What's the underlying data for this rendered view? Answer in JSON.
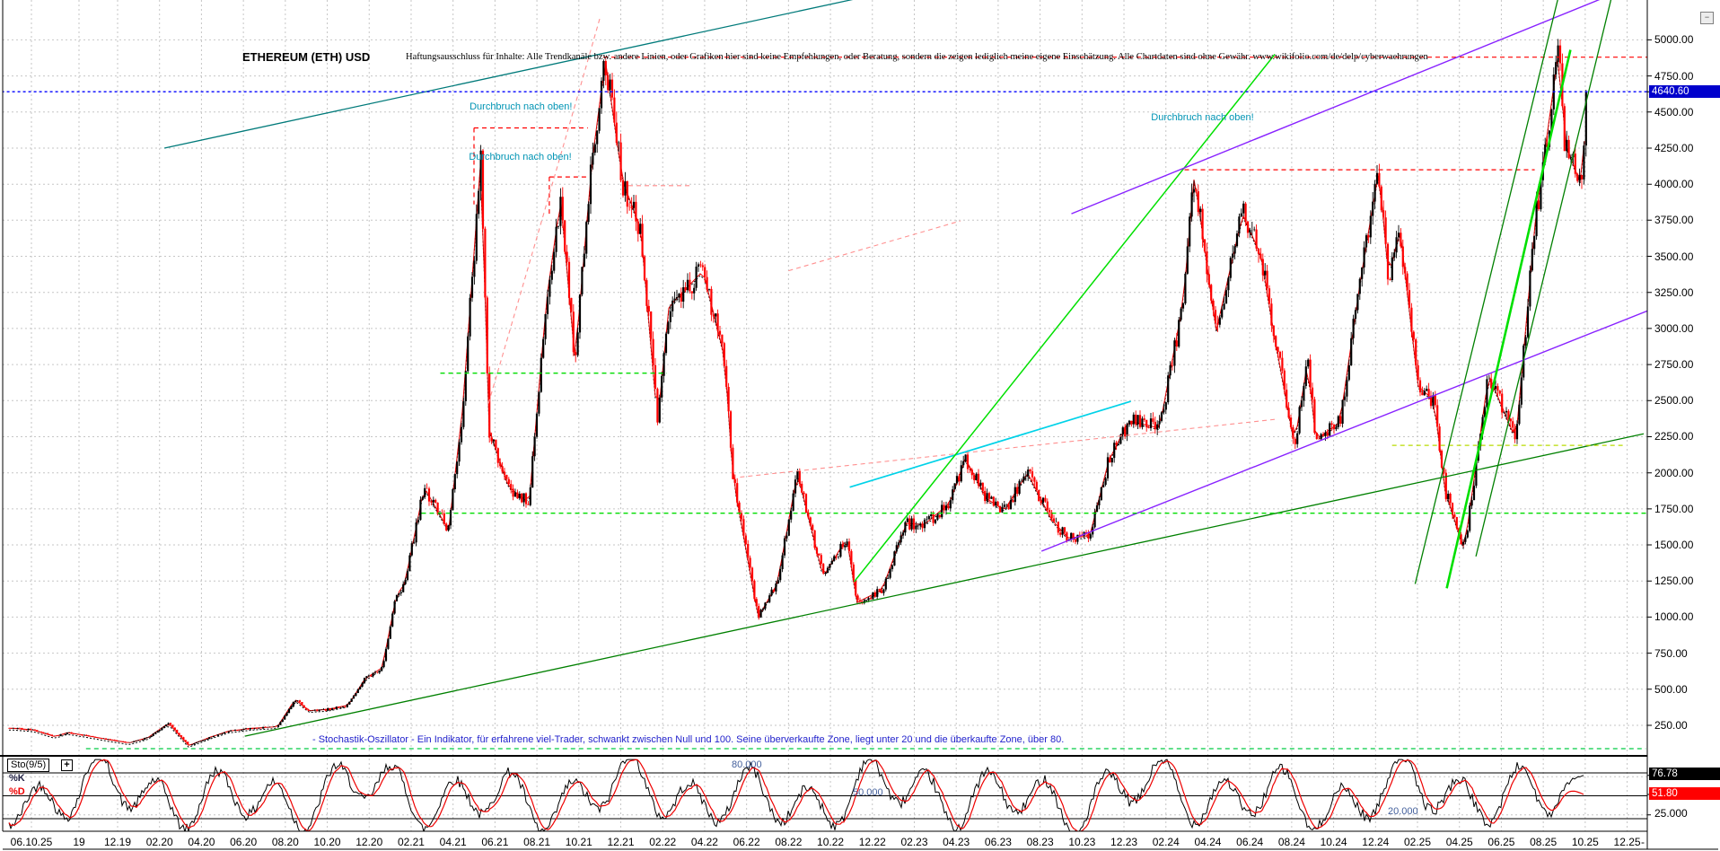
{
  "window": {
    "minimize_icon": "−"
  },
  "header": {
    "title": "ETHEREUM (ETH) USD",
    "disclaimer": "Haftungsausschluss für Inhalte: Alle Trendkanäle bzw. andere Linien, oder Grafiken hier sind keine Empfehlungen, oder Beratung, sondern die zeigen lediglich meine eigene Einschätzung. Alle Chartdaten sind ohne Gewähr.  www.wikifolio.com/de/delp/cyberwaehrungen"
  },
  "price_axis": {
    "ticks": [
      "5000.00",
      "4750.00",
      "4500.00",
      "4250.00",
      "4000.00",
      "3750.00",
      "3500.00",
      "3250.00",
      "3000.00",
      "2750.00",
      "2500.00",
      "2250.00",
      "2000.00",
      "1750.00",
      "1500.00",
      "1250.00",
      "1000.00",
      "750.00",
      "500.00",
      "250.00"
    ],
    "current_label": "4640.60",
    "current_value": 4640.6,
    "current_bg": "#0000cc",
    "axis_range": [
      250,
      5000
    ]
  },
  "date_axis": {
    "leading": [
      "06.10.25",
      "19"
    ],
    "labels": [
      "12.19",
      "02.20",
      "04.20",
      "06.20",
      "08.20",
      "10.20",
      "12.20",
      "02.21",
      "04.21",
      "06.21",
      "08.21",
      "10.21",
      "12.21",
      "02.22",
      "04.22",
      "06.22",
      "08.22",
      "10.22",
      "12.22",
      "02.23",
      "04.23",
      "06.23",
      "08.23",
      "10.23",
      "12.23",
      "02.24",
      "04.24",
      "06.24",
      "08.24",
      "10.24",
      "12.24",
      "02.25",
      "04.25",
      "06.25",
      "08.25",
      "10.25",
      "12.25"
    ],
    "trailing": "-"
  },
  "stochastic": {
    "indicator_label": "Sto(9/5)",
    "expand_icon": "+",
    "k_label": "%K",
    "d_label": "%D",
    "k_value": "76.78",
    "d_value": "51.80",
    "axis_tick": "25.000",
    "level_labels": [
      "80.000",
      "50.000",
      "20.000"
    ],
    "levels": [
      80,
      50,
      20
    ],
    "k_color": "#000000",
    "d_color": "#ee0000",
    "description": "- Stochastik-Oszillator - Ein Indikator, für erfahrene viel-Trader, schwankt zwischen Null und 100. Seine überverkaufte Zone, liegt unter 20 und die überkaufte Zone, über 80."
  },
  "colors": {
    "candle_up": "#000000",
    "candle_down": "#ff0000",
    "grid": "#c6c6c6",
    "current_line": "#0000ff",
    "annotation_text": "#0094b4"
  },
  "chart_data": {
    "type": "candlestick",
    "symbol": "ETHEREUM (ETH) USD",
    "currency": "USD",
    "current_price": 4640.6,
    "ylim": [
      250,
      5000
    ],
    "grid": true,
    "series": [
      [
        "2019-07-01",
        230
      ],
      [
        "2019-08-01",
        218
      ],
      [
        "2019-09-01",
        172
      ],
      [
        "2019-09-20",
        200
      ],
      [
        "2019-10-15",
        180
      ],
      [
        "2019-11-20",
        150
      ],
      [
        "2019-12-18",
        128
      ],
      [
        "2020-01-15",
        166
      ],
      [
        "2020-02-14",
        265
      ],
      [
        "2020-03-13",
        110
      ],
      [
        "2020-04-15",
        170
      ],
      [
        "2020-05-10",
        210
      ],
      [
        "2020-06-15",
        230
      ],
      [
        "2020-07-20",
        240
      ],
      [
        "2020-08-15",
        430
      ],
      [
        "2020-09-05",
        352
      ],
      [
        "2020-10-01",
        360
      ],
      [
        "2020-11-01",
        390
      ],
      [
        "2020-11-25",
        570
      ],
      [
        "2020-12-20",
        650
      ],
      [
        "2021-01-10",
        1150
      ],
      [
        "2021-01-22",
        1230
      ],
      [
        "2021-02-20",
        1900
      ],
      [
        "2021-03-25",
        1600
      ],
      [
        "2021-04-15",
        2450
      ],
      [
        "2021-05-11",
        4180
      ],
      [
        "2021-05-23",
        2300
      ],
      [
        "2021-06-21",
        1900
      ],
      [
        "2021-07-20",
        1790
      ],
      [
        "2021-08-15",
        3200
      ],
      [
        "2021-09-05",
        3900
      ],
      [
        "2021-09-26",
        2780
      ],
      [
        "2021-10-20",
        4150
      ],
      [
        "2021-11-09",
        4860
      ],
      [
        "2021-12-04",
        4020
      ],
      [
        "2021-12-30",
        3690
      ],
      [
        "2022-01-24",
        2350
      ],
      [
        "2022-02-10",
        3150
      ],
      [
        "2022-03-29",
        3400
      ],
      [
        "2022-04-30",
        2800
      ],
      [
        "2022-05-12",
        1960
      ],
      [
        "2022-06-18",
        1000
      ],
      [
        "2022-07-15",
        1230
      ],
      [
        "2022-08-14",
        2000
      ],
      [
        "2022-09-21",
        1280
      ],
      [
        "2022-10-25",
        1550
      ],
      [
        "2022-11-09",
        1100
      ],
      [
        "2022-12-15",
        1190
      ],
      [
        "2023-01-20",
        1650
      ],
      [
        "2023-02-15",
        1640
      ],
      [
        "2023-03-22",
        1790
      ],
      [
        "2023-04-14",
        2100
      ],
      [
        "2023-05-15",
        1820
      ],
      [
        "2023-06-10",
        1740
      ],
      [
        "2023-07-13",
        2000
      ],
      [
        "2023-08-17",
        1680
      ],
      [
        "2023-09-11",
        1550
      ],
      [
        "2023-10-12",
        1560
      ],
      [
        "2023-11-09",
        2080
      ],
      [
        "2023-12-08",
        2360
      ],
      [
        "2024-01-22",
        2310
      ],
      [
        "2024-02-26",
        3180
      ],
      [
        "2024-03-12",
        4070
      ],
      [
        "2024-04-13",
        2980
      ],
      [
        "2024-05-21",
        3790
      ],
      [
        "2024-06-17",
        3510
      ],
      [
        "2024-07-07",
        2930
      ],
      [
        "2024-08-05",
        2200
      ],
      [
        "2024-08-24",
        2770
      ],
      [
        "2024-09-06",
        2230
      ],
      [
        "2024-10-10",
        2350
      ],
      [
        "2024-11-11",
        3380
      ],
      [
        "2024-12-06",
        4100
      ],
      [
        "2024-12-20",
        3350
      ],
      [
        "2025-01-06",
        3690
      ],
      [
        "2025-02-02",
        2600
      ],
      [
        "2025-02-25",
        2500
      ],
      [
        "2025-03-11",
        1870
      ],
      [
        "2025-04-08",
        1470
      ],
      [
        "2025-05-13",
        2680
      ],
      [
        "2025-06-22",
        2230
      ],
      [
        "2025-07-20",
        3750
      ],
      [
        "2025-08-24",
        4950
      ],
      [
        "2025-09-01",
        4300
      ],
      [
        "2025-09-25",
        4000
      ],
      [
        "2025-10-06",
        4640.6
      ]
    ],
    "trendlines": [
      {
        "name": "teal-longterm-line",
        "color": "#007a7a",
        "style": "solid",
        "width": 1.3,
        "pts": [
          [
            "2020-02-08",
            4250
          ],
          [
            "2022-11-03",
            5280
          ]
        ]
      },
      {
        "name": "ath-resistance-4880",
        "color": "#ff0000",
        "style": "dashed",
        "width": 1.2,
        "pts": [
          [
            "2021-11-06",
            4880
          ],
          [
            "2025-12-30",
            4880
          ]
        ]
      },
      {
        "name": "breakout-level-may-2021",
        "color": "#ff0000",
        "style": "dashed",
        "width": 1.2,
        "pts": [
          [
            "2021-05-01",
            4390
          ],
          [
            "2021-10-14",
            4390
          ]
        ]
      },
      {
        "name": "breakout-drop-may-2021",
        "color": "#ff0000",
        "style": "dashed",
        "width": 1.2,
        "pts": [
          [
            "2021-05-01",
            4390
          ],
          [
            "2021-05-01",
            3860
          ]
        ]
      },
      {
        "name": "breakout-level-oct-2021",
        "color": "#ff0000",
        "style": "dashed",
        "width": 1.2,
        "pts": [
          [
            "2021-08-19",
            4050
          ],
          [
            "2021-10-14",
            4050
          ]
        ]
      },
      {
        "name": "breakout-drop-oct-2021",
        "color": "#ff0000",
        "style": "dashed",
        "width": 1.2,
        "pts": [
          [
            "2021-08-19",
            4050
          ],
          [
            "2021-08-19",
            3780
          ]
        ]
      },
      {
        "name": "resistance-3990-dec-2021",
        "color": "#ff8888",
        "style": "dashed",
        "width": 1.1,
        "pts": [
          [
            "2021-12-12",
            3990
          ],
          [
            "2022-03-10",
            3990
          ]
        ]
      },
      {
        "name": "breakout-level-mar-2024",
        "color": "#ff0000",
        "style": "dashed",
        "width": 1.2,
        "pts": [
          [
            "2024-02-28",
            4100
          ],
          [
            "2025-07-19",
            4100
          ]
        ]
      },
      {
        "name": "parabolic-support-2021",
        "color": "#ff9090",
        "style": "dashed",
        "width": 1.1,
        "curve": [
          [
            "2021-05-22",
            2480
          ],
          [
            "2021-08-16",
            3880
          ],
          [
            "2021-11-01",
            5150
          ]
        ]
      },
      {
        "name": "pink-resistance-2022-2024",
        "color": "#ff9090",
        "style": "dashed",
        "width": 1.1,
        "pts": [
          [
            "2022-05-22",
            1970
          ],
          [
            "2024-07-07",
            2370
          ]
        ]
      },
      {
        "name": "pink-projection-2023",
        "color": "#ff9090",
        "style": "dashed",
        "width": 1.1,
        "pts": [
          [
            "2022-08-01",
            3400
          ],
          [
            "2023-04-07",
            3745
          ]
        ]
      },
      {
        "name": "cyan-trendline-2023",
        "color": "#00d2e8",
        "style": "solid",
        "width": 1.7,
        "pts": [
          [
            "2022-10-29",
            1900
          ],
          [
            "2023-12-11",
            2495
          ]
        ]
      },
      {
        "name": "lime-uptrend-2022-2024",
        "color": "#00e000",
        "style": "solid",
        "width": 1.5,
        "pts": [
          [
            "2022-11-05",
            1245
          ],
          [
            "2024-07-07",
            4900
          ]
        ]
      },
      {
        "name": "green-longterm-support",
        "color": "#008000",
        "style": "solid",
        "width": 1.3,
        "pts": [
          [
            "2020-06-03",
            175
          ],
          [
            "2025-12-25",
            2270
          ]
        ]
      },
      {
        "name": "purple-upper-trendline",
        "color": "#8822ff",
        "style": "solid",
        "width": 1.4,
        "pts": [
          [
            "2023-09-16",
            3795
          ],
          [
            "2025-10-22",
            5280
          ]
        ]
      },
      {
        "name": "purple-lower-trendline",
        "color": "#8822ff",
        "style": "solid",
        "width": 1.4,
        "pts": [
          [
            "2023-08-03",
            1457
          ],
          [
            "2025-12-31",
            3123
          ]
        ]
      },
      {
        "name": "support-1720",
        "color": "#00dd00",
        "style": "dashed",
        "width": 1.3,
        "pts": [
          [
            "2021-02-16",
            1720
          ],
          [
            "2025-12-31",
            1720
          ]
        ]
      },
      {
        "name": "support-2690",
        "color": "#00dd00",
        "style": "dashed",
        "width": 1.3,
        "pts": [
          [
            "2021-03-13",
            2690
          ],
          [
            "2022-02-07",
            2690
          ]
        ]
      },
      {
        "name": "support-90-longterm",
        "color": "#00cc44",
        "style": "dashed",
        "width": 1.2,
        "pts": [
          [
            "2019-10-16",
            88
          ],
          [
            "2025-12-28",
            88
          ]
        ]
      },
      {
        "name": "level-2190-dashed",
        "color": "#b8dc00",
        "style": "dashed",
        "width": 1.2,
        "pts": [
          [
            "2024-12-25",
            2190
          ],
          [
            "2025-11-25",
            2190
          ]
        ]
      },
      {
        "name": "steep-channel-left-2025",
        "color": "#008000",
        "style": "solid",
        "width": 1.3,
        "pts": [
          [
            "2025-01-28",
            1230
          ],
          [
            "2025-08-22",
            5280
          ]
        ]
      },
      {
        "name": "steep-channel-right-2025",
        "color": "#008000",
        "style": "solid",
        "width": 1.3,
        "pts": [
          [
            "2025-04-25",
            1420
          ],
          [
            "2025-11-08",
            5280
          ]
        ]
      },
      {
        "name": "lime-steep-2025",
        "color": "#00e000",
        "style": "solid",
        "width": 2.6,
        "pts": [
          [
            "2025-03-13",
            1200
          ],
          [
            "2025-09-10",
            4930
          ]
        ]
      },
      {
        "name": "current-price-line",
        "color": "#0000ff",
        "style": "dotted",
        "width": 1.3,
        "pts": [
          [
            "2019-06-15",
            4640.6
          ],
          [
            "2025-12-31",
            4640.6
          ]
        ]
      }
    ],
    "annotations": [
      {
        "text": "Durchbruch nach oben!",
        "date": "2021-04-25",
        "price": 4535
      },
      {
        "text": "Durchbruch nach oben!",
        "date": "2021-04-24",
        "price": 4190
      },
      {
        "text": "Durchbruch nach oben!",
        "date": "2024-01-10",
        "price": 4460
      }
    ]
  }
}
